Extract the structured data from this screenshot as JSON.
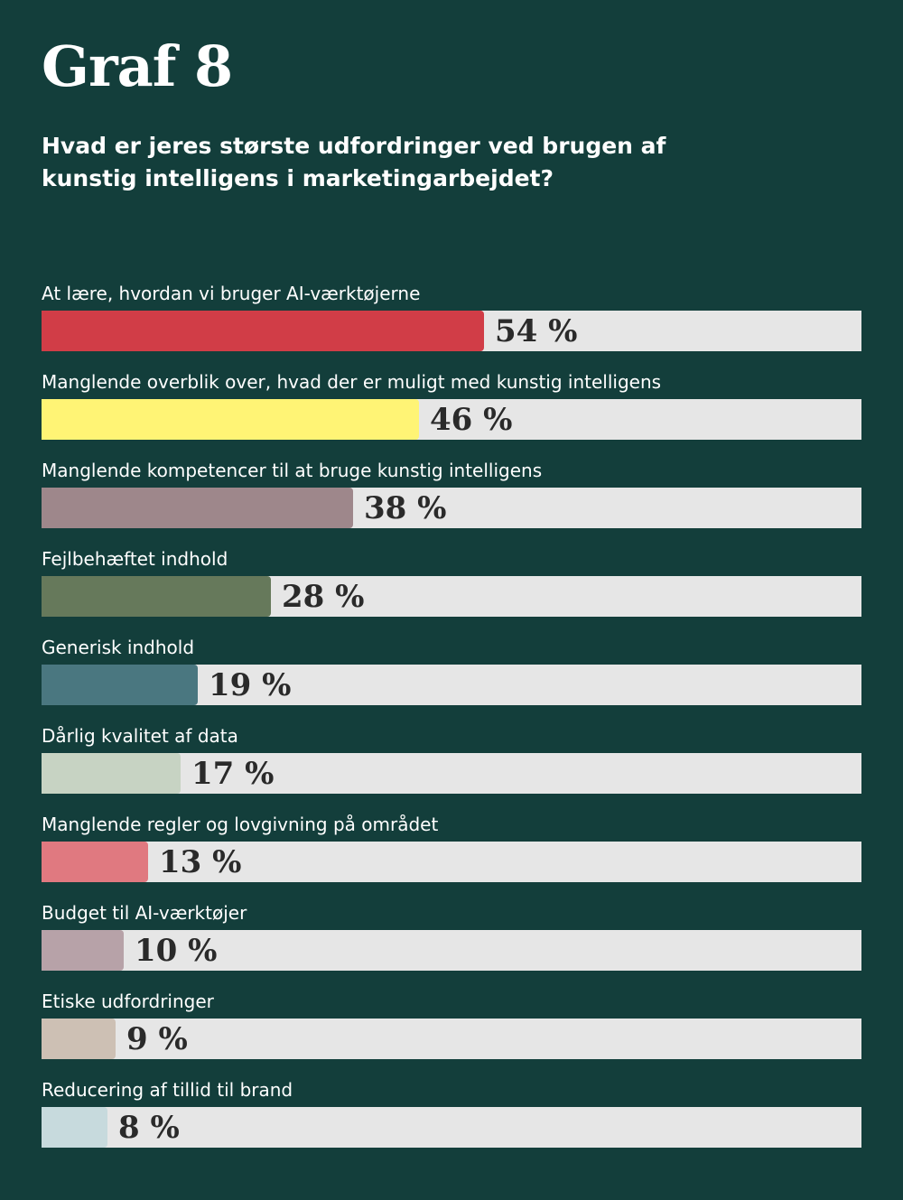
{
  "chart_data": {
    "type": "bar",
    "orientation": "horizontal",
    "title": "Graf 8",
    "subtitle": "Hvad er jeres største udfordringer ved brugen af kunstig intelligens i marketingarbejdet?",
    "xlim": [
      0,
      100
    ],
    "unit": "%",
    "categories": [
      "At lære, hvordan vi bruger AI-værktøjerne",
      "Manglende overblik over, hvad der er muligt med kunstig intelligens",
      "Manglende kompetencer til at bruge kunstig intelligens",
      "Fejlbehæftet indhold",
      "Generisk indhold",
      "Dårlig kvalitet af data",
      "Manglende regler og lovgivning på området",
      "Budget til AI-værktøjer",
      "Etiske udfordringer",
      "Reducering af tillid til brand"
    ],
    "values": [
      54,
      46,
      38,
      28,
      19,
      17,
      13,
      10,
      9,
      8
    ],
    "value_labels": [
      "54 %",
      "46 %",
      "38 %",
      "28 %",
      "19 %",
      "17 %",
      "13 %",
      "10 %",
      "9 %",
      "8 %"
    ],
    "colors": [
      "#d13d47",
      "#fff475",
      "#9e878b",
      "#66795b",
      "#4a7780",
      "#c7d3c3",
      "#e07980",
      "#b7a2a8",
      "#cdc0b4",
      "#c7dadd"
    ],
    "track_color": "#e6e6e6",
    "background_color": "#133e3b"
  }
}
